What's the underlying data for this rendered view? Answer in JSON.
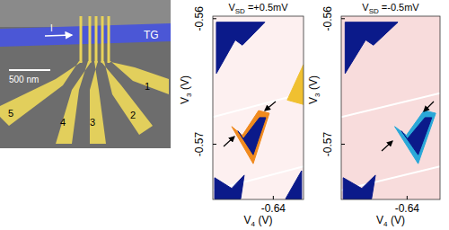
{
  "sem_image": {
    "scale_bar": "500 nm",
    "top_gate": "TG",
    "current": "I",
    "gates": [
      "1",
      "2",
      "3",
      "4",
      "5"
    ]
  },
  "chart_data": [
    {
      "type": "heatmap",
      "title": {
        "symbol": "V",
        "subscript": "SD",
        "text": " =+0.5mV"
      },
      "x_label": {
        "symbol": "V",
        "subscript": "4",
        "text": " (V)"
      },
      "y_label": {
        "symbol": "V",
        "subscript": "3",
        "text": " (V)"
      },
      "xlim": [
        -0.652,
        -0.634
      ],
      "ylim": [
        -0.5744,
        -0.5598
      ],
      "xticks": [
        -0.64
      ],
      "yticks": [
        -0.56,
        -0.57
      ],
      "regions": [
        {
          "color": "#0b1a8a",
          "points": [
            [
              -0.65129,
              -0.56028
            ],
            [
              -0.64168,
              -0.56028
            ],
            [
              -0.64613,
              -0.56211
            ],
            [
              -0.64755,
              -0.56169
            ],
            [
              -0.65129,
              -0.56436
            ]
          ]
        },
        {
          "color": "#f08a1e",
          "points": [
            [
              -0.64826,
              -0.56859
            ],
            [
              -0.64613,
              -0.56929
            ],
            [
              -0.64292,
              -0.56732
            ],
            [
              -0.64079,
              -0.56753
            ],
            [
              -0.64399,
              -0.57155
            ]
          ]
        },
        {
          "color": "#0b1a8a",
          "points": [
            [
              -0.64702,
              -0.56894
            ],
            [
              -0.64595,
              -0.56957
            ],
            [
              -0.64274,
              -0.56788
            ],
            [
              -0.6415,
              -0.56788
            ],
            [
              -0.64399,
              -0.57084
            ]
          ]
        },
        {
          "color": "#f0c030",
          "points": [
            [
              -0.63723,
              -0.56648
            ],
            [
              -0.63402,
              -0.56366
            ],
            [
              -0.63402,
              -0.56683
            ]
          ]
        },
        {
          "color": "#0b1a8a",
          "points": [
            [
              -0.65164,
              -0.57267
            ],
            [
              -0.64826,
              -0.57352
            ],
            [
              -0.64577,
              -0.57246
            ],
            [
              -0.64648,
              -0.57436
            ],
            [
              -0.65164,
              -0.57436
            ]
          ]
        },
        {
          "color": "#0b1a8a",
          "points": [
            [
              -0.63758,
              -0.57436
            ],
            [
              -0.63438,
              -0.57211
            ],
            [
              -0.63438,
              -0.57436
            ]
          ]
        }
      ]
    },
    {
      "type": "heatmap",
      "title": {
        "symbol": "V",
        "subscript": "SD",
        "text": " =-0.5mV"
      },
      "x_label": {
        "symbol": "V",
        "subscript": "4",
        "text": " (V)"
      },
      "y_label": {
        "symbol": "V",
        "subscript": "3",
        "text": " (V)"
      },
      "xlim": [
        -0.652,
        -0.634
      ],
      "ylim": [
        -0.5744,
        -0.5598
      ],
      "xticks": [
        -0.64
      ],
      "yticks": [
        -0.56,
        -0.57
      ],
      "regions": [
        {
          "color": "#0b1a8a",
          "points": [
            [
              -0.65129,
              -0.56028
            ],
            [
              -0.64168,
              -0.56028
            ],
            [
              -0.64613,
              -0.56211
            ],
            [
              -0.64755,
              -0.56169
            ],
            [
              -0.65129,
              -0.56436
            ]
          ]
        },
        {
          "color": "#2aa8d8",
          "points": [
            [
              -0.64226,
              -0.56859
            ],
            [
              -0.64013,
              -0.56929
            ],
            [
              -0.63692,
              -0.56732
            ],
            [
              -0.63479,
              -0.56753
            ],
            [
              -0.63799,
              -0.57155
            ]
          ]
        },
        {
          "color": "#0b1a8a",
          "points": [
            [
              -0.64102,
              -0.56894
            ],
            [
              -0.63995,
              -0.56957
            ],
            [
              -0.63674,
              -0.56788
            ],
            [
              -0.6355,
              -0.56788
            ],
            [
              -0.63799,
              -0.57084
            ]
          ]
        },
        {
          "color": "#0b1a8a",
          "points": [
            [
              -0.65164,
              -0.57267
            ],
            [
              -0.64826,
              -0.57352
            ],
            [
              -0.64577,
              -0.57246
            ],
            [
              -0.64648,
              -0.57436
            ],
            [
              -0.65164,
              -0.57436
            ]
          ]
        }
      ]
    }
  ]
}
